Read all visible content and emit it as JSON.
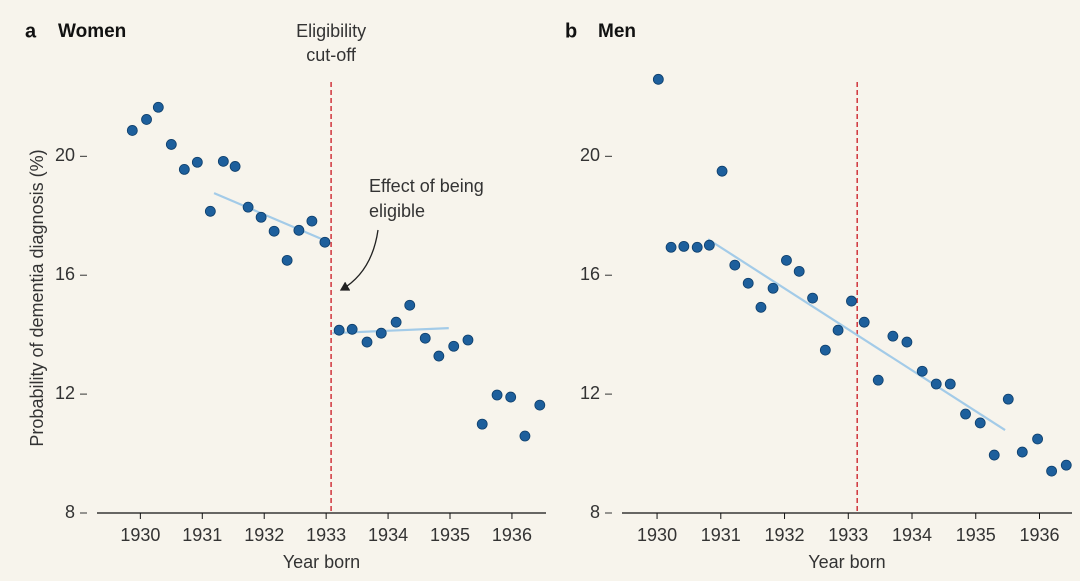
{
  "chart_data": [
    {
      "type": "scatter",
      "panel": "a",
      "title": "Women",
      "ylabel": "Probability of dementia diagnosis (%)",
      "xlabel": "Year born",
      "x": [
        1929.87,
        1930.1,
        1930.29,
        1930.5,
        1930.71,
        1930.92,
        1931.13,
        1931.34,
        1931.53,
        1931.74,
        1931.95,
        1932.16,
        1932.37,
        1932.56,
        1932.77,
        1932.98,
        1933.21,
        1933.42,
        1933.66,
        1933.89,
        1934.13,
        1934.35,
        1934.6,
        1934.82,
        1935.06,
        1935.29,
        1935.52,
        1935.76,
        1935.98,
        1936.21,
        1936.45
      ],
      "values": [
        20.87,
        21.24,
        21.65,
        20.4,
        19.56,
        19.8,
        18.15,
        19.83,
        19.66,
        18.29,
        17.95,
        17.48,
        16.5,
        17.51,
        17.82,
        17.11,
        14.15,
        14.18,
        13.75,
        14.05,
        14.42,
        14.99,
        13.88,
        13.28,
        13.61,
        13.82,
        10.99,
        11.97,
        11.9,
        10.59,
        11.63
      ],
      "color": "#1d5f9c",
      "fit_lines": [
        {
          "x": [
            1931.19,
            1933.05
          ],
          "values": [
            18.76,
            17.11
          ],
          "color": "#a3cbe8"
        },
        {
          "x": [
            1933.1,
            1934.98
          ],
          "values": [
            14.05,
            14.22
          ],
          "color": "#a3cbe8"
        }
      ],
      "cutoff_x": 1933.08,
      "cutoff_color": "#d0343c",
      "cutoff_label": [
        "Eligibility",
        "cut-off"
      ],
      "annotation": [
        "Effect of being",
        "eligible"
      ],
      "xlim": [
        1929.3,
        1936.55
      ],
      "xticks": [
        1930,
        1931,
        1932,
        1933,
        1934,
        1935,
        1936
      ],
      "ylim": [
        8,
        22.5
      ],
      "yticks": [
        8,
        12,
        16,
        20
      ]
    },
    {
      "type": "scatter",
      "panel": "b",
      "title": "Men",
      "xlabel": "Year born",
      "x": [
        1930.02,
        1930.22,
        1930.42,
        1930.63,
        1930.82,
        1931.02,
        1931.22,
        1931.43,
        1931.63,
        1931.82,
        1932.03,
        1932.23,
        1932.44,
        1932.64,
        1932.84,
        1933.05,
        1933.25,
        1933.47,
        1933.7,
        1933.92,
        1934.16,
        1934.38,
        1934.6,
        1934.84,
        1935.07,
        1935.29,
        1935.51,
        1935.73,
        1935.97,
        1936.19,
        1936.42
      ],
      "values": [
        22.59,
        16.94,
        16.97,
        16.94,
        17.01,
        19.5,
        16.34,
        15.73,
        14.92,
        15.56,
        16.5,
        16.13,
        15.23,
        13.48,
        14.15,
        15.13,
        14.42,
        12.47,
        13.95,
        13.75,
        12.77,
        12.34,
        12.34,
        11.33,
        11.03,
        9.95,
        11.83,
        10.05,
        10.49,
        9.41,
        9.61
      ],
      "color": "#1d5f9c",
      "fit_lines": [
        {
          "x": [
            1930.8,
            1935.46
          ],
          "values": [
            17.21,
            10.79
          ],
          "color": "#a3cbe8"
        }
      ],
      "cutoff_x": 1933.14,
      "cutoff_color": "#d0343c",
      "xlim": [
        1929.45,
        1936.51
      ],
      "xticks": [
        1930,
        1931,
        1932,
        1933,
        1934,
        1935,
        1936
      ],
      "ylim": [
        8,
        22.5
      ],
      "yticks": [
        8,
        12,
        16,
        20
      ]
    }
  ]
}
